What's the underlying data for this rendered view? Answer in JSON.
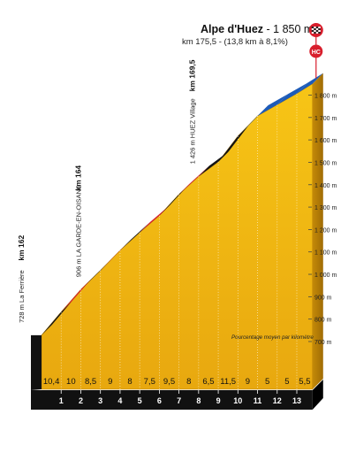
{
  "chart_data": {
    "type": "area",
    "title_name": "Alpe d'Huez",
    "title_alt": " - 1 850 m",
    "subtitle": "km 175,5 - (13,8 km à 8,1%)",
    "category_badge": "HC",
    "yticks": [
      "700 m",
      "800 m",
      "900 m",
      "1 000 m",
      "1 100 m",
      "1 200 m",
      "1 300 m",
      "1 400 m",
      "1 500 m",
      "1 600 m",
      "1 700 m",
      "1 800 m"
    ],
    "ytick_values": [
      700,
      800,
      900,
      1000,
      1100,
      1200,
      1300,
      1400,
      1500,
      1600,
      1700,
      1800
    ],
    "ylim": [
      580,
      1870
    ],
    "xlim": [
      0,
      13.8
    ],
    "km_labels": [
      "1",
      "2",
      "3",
      "4",
      "5",
      "6",
      "7",
      "8",
      "9",
      "10",
      "11",
      "12",
      "13"
    ],
    "gradients": [
      "10,4",
      "10",
      "8,5",
      "9",
      "8",
      "7,5",
      "9,5",
      "8",
      "6,5",
      "11,5",
      "9",
      "5",
      "5",
      "5,5"
    ],
    "segment_colors": [
      "#141414",
      "#d81e2c",
      "#141414",
      "#d81e2c",
      "#141414",
      "#d81e2c",
      "#141414",
      "#d81e2c",
      "#141414",
      "#141414",
      "#1d5bb8",
      "#1d5bb8",
      "#1d5bb8",
      "#1d5bb8"
    ],
    "elevation_x": [
      0,
      1,
      2,
      3,
      4,
      5,
      6,
      7,
      8,
      9,
      10,
      11,
      12,
      13,
      13.8
    ],
    "elevation_y": [
      728,
      832,
      932,
      1017,
      1107,
      1187,
      1262,
      1357,
      1437,
      1502,
      1617,
      1707,
      1757,
      1807,
      1851
    ],
    "places": [
      {
        "label": "728 m La Ferrière",
        "km": "km 162"
      },
      {
        "label": "906 m LA GARDE-EN-OISANS",
        "km": "km 164"
      },
      {
        "label": "1 426 m HUEZ Village",
        "km": "km 169,5"
      }
    ],
    "legend_note": "Pourcentage moyen par kilomètre"
  }
}
